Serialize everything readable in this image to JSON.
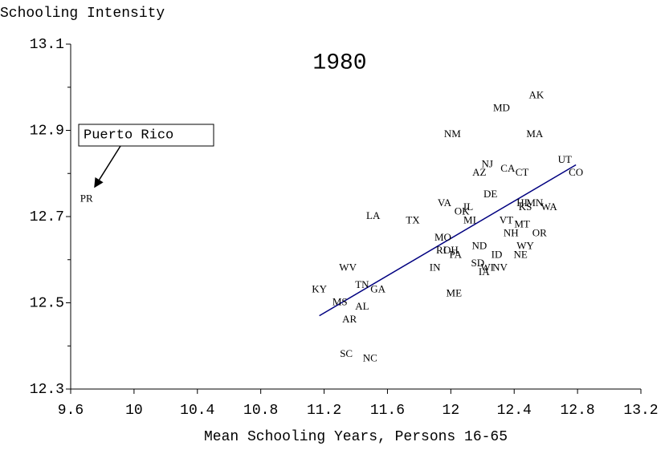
{
  "chart_data": {
    "type": "scatter",
    "title": "1980",
    "y_axis_label": "Schooling Intensity",
    "x_axis_label": "Mean Schooling Years, Persons 16-65",
    "annotation": "Puerto Rico",
    "xlim": [
      9.6,
      13.2
    ],
    "xticks": [
      9.6,
      10,
      10.4,
      10.8,
      11.2,
      11.6,
      12,
      12.4,
      12.8,
      13.2
    ],
    "ylim": [
      12.3,
      13.1
    ],
    "yticks": [
      12.3,
      12.5,
      12.7,
      12.9,
      13.1
    ],
    "yminor": [
      12.4,
      12.6,
      12.8,
      13.0
    ],
    "fit_line": {
      "color": "#000080",
      "x": [
        11.17,
        12.79
      ],
      "y": [
        12.47,
        12.82
      ]
    },
    "labels": [
      "PR",
      "KY",
      "MS",
      "AL",
      "AR",
      "SC",
      "NC",
      "WV",
      "TN",
      "GA",
      "LA",
      "TX",
      "IN",
      "ME",
      "MO",
      "RI",
      "OH",
      "PA",
      "VA",
      "OK",
      "IL",
      "MI",
      "NM",
      "MD",
      "AK",
      "MA",
      "NJ",
      "AZ",
      "CA",
      "CT",
      "UT",
      "CO",
      "DE",
      "HI",
      "KS",
      "MN",
      "WA",
      "VT",
      "MT",
      "NH",
      "OR",
      "WY",
      "NE",
      "ND",
      "ID",
      "SD",
      "WI",
      "NV",
      "IA"
    ],
    "x": [
      9.7,
      11.17,
      11.3,
      11.44,
      11.36,
      11.34,
      11.49,
      11.35,
      11.44,
      11.54,
      11.51,
      11.76,
      11.9,
      12.02,
      11.95,
      11.94,
      12.0,
      12.03,
      11.96,
      12.07,
      12.11,
      12.12,
      12.01,
      12.32,
      12.54,
      12.53,
      12.23,
      12.18,
      12.36,
      12.45,
      12.72,
      12.79,
      12.25,
      12.45,
      12.47,
      12.53,
      12.62,
      12.35,
      12.45,
      12.38,
      12.56,
      12.47,
      12.44,
      12.18,
      12.29,
      12.17,
      12.23,
      12.31,
      12.21
    ],
    "y": [
      12.74,
      12.53,
      12.5,
      12.49,
      12.46,
      12.38,
      12.37,
      12.58,
      12.54,
      12.53,
      12.7,
      12.69,
      12.58,
      12.52,
      12.65,
      12.62,
      12.62,
      12.61,
      12.73,
      12.71,
      12.72,
      12.69,
      12.89,
      12.95,
      12.98,
      12.89,
      12.82,
      12.8,
      12.81,
      12.8,
      12.83,
      12.8,
      12.75,
      12.73,
      12.72,
      12.73,
      12.72,
      12.69,
      12.68,
      12.66,
      12.66,
      12.63,
      12.61,
      12.63,
      12.61,
      12.59,
      12.58,
      12.58,
      12.57
    ]
  }
}
